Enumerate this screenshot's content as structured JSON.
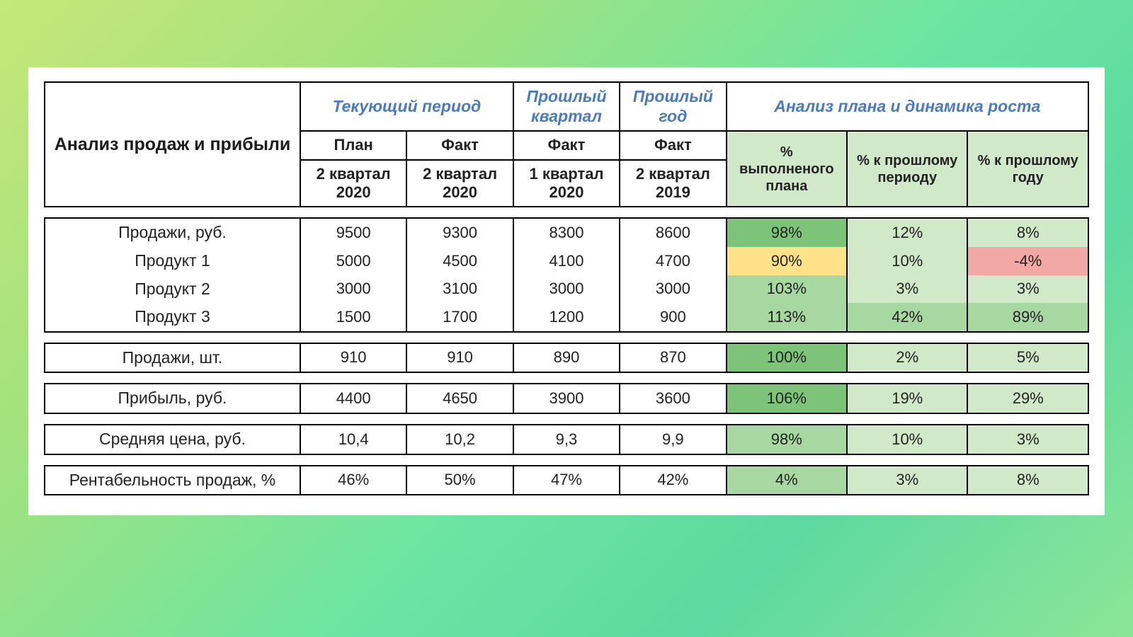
{
  "colors": {
    "green_dark": "#7dc47a",
    "green_mid": "#a8d8a1",
    "green_light": "#d1e8c9",
    "yellow": "#ffe28a",
    "red": "#f2a8a4"
  },
  "header": {
    "title": "Анализ продаж и прибыли",
    "group_current": "Текующий период",
    "group_prev_q": "Прошлый квартал",
    "group_prev_y": "Прошлый год",
    "group_analysis": "Анализ плана и динамика роста",
    "col_plan": "План",
    "col_fact": "Факт",
    "period_q2_2020": "2 квартал 2020",
    "period_q1_2020": "1 квартал 2020",
    "period_q2_2019": "2 квартал 2019",
    "pct_plan": "% выполненого плана",
    "pct_period": "% к прошлому периоду",
    "pct_year": "% к прошлому году"
  },
  "rows": {
    "sales_rub": {
      "label": "Продажи, руб.",
      "plan": "9500",
      "fact": "9300",
      "prev_q": "8300",
      "prev_y": "8600",
      "p1": {
        "v": "98%",
        "c": "green_dark"
      },
      "p2": {
        "v": "12%",
        "c": "green_light"
      },
      "p3": {
        "v": "8%",
        "c": "green_light"
      }
    },
    "prod1": {
      "label": "Продукт 1",
      "plan": "5000",
      "fact": "4500",
      "prev_q": "4100",
      "prev_y": "4700",
      "p1": {
        "v": "90%",
        "c": "yellow"
      },
      "p2": {
        "v": "10%",
        "c": "green_light"
      },
      "p3": {
        "v": "-4%",
        "c": "red"
      }
    },
    "prod2": {
      "label": "Продукт 2",
      "plan": "3000",
      "fact": "3100",
      "prev_q": "3000",
      "prev_y": "3000",
      "p1": {
        "v": "103%",
        "c": "green_mid"
      },
      "p2": {
        "v": "3%",
        "c": "green_light"
      },
      "p3": {
        "v": "3%",
        "c": "green_light"
      }
    },
    "prod3": {
      "label": "Продукт 3",
      "plan": "1500",
      "fact": "1700",
      "prev_q": "1200",
      "prev_y": "900",
      "p1": {
        "v": "113%",
        "c": "green_mid"
      },
      "p2": {
        "v": "42%",
        "c": "green_mid"
      },
      "p3": {
        "v": "89%",
        "c": "green_mid"
      }
    },
    "sales_units": {
      "label": "Продажи, шт.",
      "plan": "910",
      "fact": "910",
      "prev_q": "890",
      "prev_y": "870",
      "p1": {
        "v": "100%",
        "c": "green_dark"
      },
      "p2": {
        "v": "2%",
        "c": "green_light"
      },
      "p3": {
        "v": "5%",
        "c": "green_light"
      }
    },
    "profit": {
      "label": "Прибыль, руб.",
      "plan": "4400",
      "fact": "4650",
      "prev_q": "3900",
      "prev_y": "3600",
      "p1": {
        "v": "106%",
        "c": "green_dark"
      },
      "p2": {
        "v": "19%",
        "c": "green_light"
      },
      "p3": {
        "v": "29%",
        "c": "green_light"
      }
    },
    "avg_price": {
      "label": "Средняя цена, руб.",
      "plan": "10,4",
      "fact": "10,2",
      "prev_q": "9,3",
      "prev_y": "9,9",
      "p1": {
        "v": "98%",
        "c": "green_mid"
      },
      "p2": {
        "v": "10%",
        "c": "green_light"
      },
      "p3": {
        "v": "3%",
        "c": "green_light"
      }
    },
    "margin": {
      "label": "Рентабельность продаж, %",
      "plan": "46%",
      "fact": "50%",
      "prev_q": "47%",
      "prev_y": "42%",
      "p1": {
        "v": "4%",
        "c": "green_mid"
      },
      "p2": {
        "v": "3%",
        "c": "green_light"
      },
      "p3": {
        "v": "8%",
        "c": "green_light"
      }
    }
  }
}
